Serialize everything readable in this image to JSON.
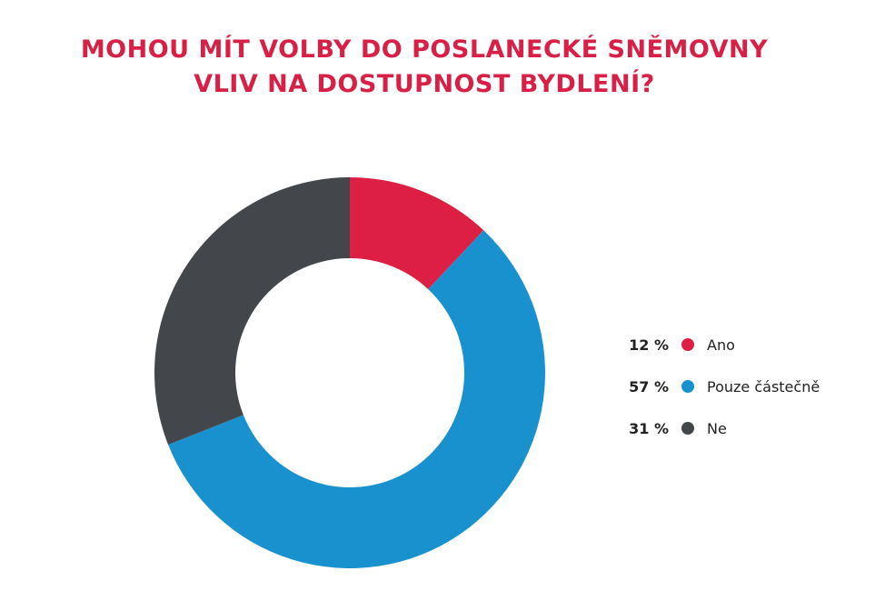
{
  "title": {
    "line1": "MOHOU MÍT VOLBY DO POSLANECKÉ SNĚMOVNY",
    "line2": "VLIV NA DOSTUPNOST BYDLENÍ?"
  },
  "chart_data": {
    "type": "pie",
    "variant": "donut",
    "title": "MOHOU MÍT VOLBY DO POSLANECKÉ SNĚMOVNY VLIV NA DOSTUPNOST BYDLENÍ?",
    "unit": "%",
    "legend_placement": "right",
    "slices": [
      {
        "label": "Ano",
        "value": 12,
        "value_text": "12 %",
        "color": "#dc1f43"
      },
      {
        "label": "Pouze částečně",
        "value": 57,
        "value_text": "57 %",
        "color": "#1a91cf"
      },
      {
        "label": "Ne",
        "value": 31,
        "value_text": "31 %",
        "color": "#43474c"
      }
    ]
  }
}
